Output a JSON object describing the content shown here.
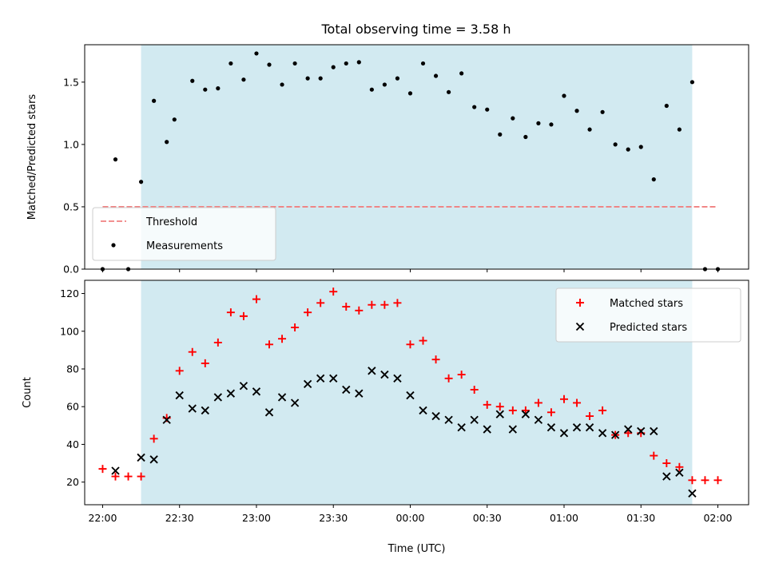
{
  "title": "Total observing time = 3.58 h",
  "colors": {
    "span_fill": "#add8e6",
    "threshold": "#f08080",
    "measurement": "#000000",
    "matched": "#ff0000",
    "predicted": "#000000",
    "legend_bg": "#ffffff"
  },
  "chart_data": [
    {
      "type": "scatter",
      "ylabel": "Matched/Predicted stars",
      "ylim": [
        0,
        1.8
      ],
      "yticks": [
        0,
        0.5,
        1.0,
        1.5
      ],
      "ytick_labels": [
        "0.0",
        "0.5",
        "1.0",
        "1.5"
      ],
      "shaded_span": [
        "22:15",
        "01:50"
      ],
      "legend": {
        "placement": "lower-left"
      },
      "threshold": {
        "name": "Threshold",
        "value": 0.5,
        "x_range": [
          "22:00",
          "02:00"
        ]
      },
      "series": [
        {
          "name": "Measurements",
          "marker": "dot",
          "x": [
            "22:00",
            "22:05",
            "22:10",
            "22:15",
            "22:20",
            "22:25",
            "22:28",
            "22:35",
            "22:40",
            "22:45",
            "22:50",
            "22:55",
            "23:00",
            "23:05",
            "23:10",
            "23:15",
            "23:20",
            "23:25",
            "23:30",
            "23:35",
            "23:40",
            "23:45",
            "23:50",
            "23:55",
            "00:00",
            "00:05",
            "00:10",
            "00:15",
            "00:20",
            "00:25",
            "00:30",
            "00:35",
            "00:40",
            "00:45",
            "00:50",
            "00:55",
            "01:00",
            "01:05",
            "01:10",
            "01:15",
            "01:20",
            "01:25",
            "01:30",
            "01:35",
            "01:40",
            "01:45",
            "01:50",
            "01:55",
            "02:00"
          ],
          "y": [
            0.0,
            0.88,
            0.0,
            0.7,
            1.35,
            1.02,
            1.2,
            1.51,
            1.44,
            1.45,
            1.65,
            1.52,
            1.73,
            1.64,
            1.48,
            1.65,
            1.53,
            1.53,
            1.62,
            1.65,
            1.66,
            1.44,
            1.48,
            1.53,
            1.41,
            1.65,
            1.55,
            1.42,
            1.57,
            1.3,
            1.28,
            1.08,
            1.21,
            1.06,
            1.17,
            1.16,
            1.39,
            1.27,
            1.12,
            1.26,
            1.0,
            0.96,
            0.98,
            0.72,
            1.31,
            1.12,
            1.5,
            0.0,
            0.0
          ]
        }
      ]
    },
    {
      "type": "scatter",
      "xlabel": "Time (UTC)",
      "ylabel": "Count",
      "ylim": [
        8,
        127
      ],
      "yticks": [
        20,
        40,
        60,
        80,
        100,
        120
      ],
      "xlim": [
        "21:53",
        "02:12"
      ],
      "xticks": [
        "22:00",
        "22:30",
        "23:00",
        "23:30",
        "00:00",
        "00:30",
        "01:00",
        "01:30",
        "02:00"
      ],
      "shaded_span": [
        "22:15",
        "01:50"
      ],
      "legend": {
        "placement": "upper-right"
      },
      "series": [
        {
          "name": "Matched stars",
          "marker": "plus",
          "x": [
            "22:00",
            "22:05",
            "22:10",
            "22:15",
            "22:20",
            "22:25",
            "22:30",
            "22:35",
            "22:40",
            "22:45",
            "22:50",
            "22:55",
            "23:00",
            "23:05",
            "23:10",
            "23:15",
            "23:20",
            "23:25",
            "23:30",
            "23:35",
            "23:40",
            "23:45",
            "23:50",
            "23:55",
            "00:00",
            "00:05",
            "00:10",
            "00:15",
            "00:20",
            "00:25",
            "00:30",
            "00:35",
            "00:40",
            "00:45",
            "00:50",
            "00:55",
            "01:00",
            "01:05",
            "01:10",
            "01:15",
            "01:20",
            "01:25",
            "01:30",
            "01:35",
            "01:40",
            "01:45",
            "01:50",
            "01:55",
            "02:00"
          ],
          "y": [
            27,
            23,
            23,
            23,
            43,
            54,
            79,
            89,
            83,
            94,
            110,
            108,
            117,
            93,
            96,
            102,
            110,
            115,
            121,
            113,
            111,
            114,
            114,
            115,
            93,
            95,
            85,
            75,
            77,
            69,
            61,
            60,
            58,
            58,
            62,
            57,
            64,
            62,
            55,
            58,
            45,
            46,
            46,
            34,
            30,
            28,
            21,
            21,
            21
          ]
        },
        {
          "name": "Predicted stars",
          "marker": "x",
          "x": [
            "22:05",
            "22:15",
            "22:20",
            "22:25",
            "22:30",
            "22:35",
            "22:40",
            "22:45",
            "22:50",
            "22:55",
            "23:00",
            "23:05",
            "23:10",
            "23:15",
            "23:20",
            "23:25",
            "23:30",
            "23:35",
            "23:40",
            "23:45",
            "23:50",
            "23:55",
            "00:00",
            "00:05",
            "00:10",
            "00:15",
            "00:20",
            "00:25",
            "00:30",
            "00:35",
            "00:40",
            "00:45",
            "00:50",
            "00:55",
            "01:00",
            "01:05",
            "01:10",
            "01:15",
            "01:20",
            "01:25",
            "01:30",
            "01:35",
            "01:40",
            "01:45",
            "01:50"
          ],
          "y": [
            26,
            33,
            32,
            53,
            66,
            59,
            58,
            65,
            67,
            71,
            68,
            57,
            65,
            62,
            72,
            75,
            75,
            69,
            67,
            79,
            77,
            75,
            66,
            58,
            55,
            53,
            49,
            53,
            48,
            56,
            48,
            56,
            53,
            49,
            46,
            49,
            49,
            46,
            45,
            48,
            47,
            47,
            23,
            25,
            14
          ]
        }
      ]
    }
  ]
}
